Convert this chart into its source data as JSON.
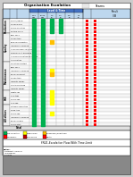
{
  "title": "Organisation Escalation",
  "logo_text": "Teams",
  "green": "#00B050",
  "yellow": "#FFFF00",
  "orange": "#FFC000",
  "red": "#FF0000",
  "dark_red": "#C00000",
  "light_blue": "#BDD7EE",
  "blue_header": "#4472C4",
  "white": "#FFFFFF",
  "light_gray": "#F2F2F2",
  "gray": "#D9D9D9",
  "black": "#000000",
  "page_bg": "#E8E8E8",
  "sections": [
    {
      "name": "Production",
      "rows": [
        {
          "label": "Client / Owner",
          "dots": [
            "G",
            "G",
            "G",
            "G",
            "",
            "",
            ""
          ],
          "right": [
            "R",
            "R"
          ]
        },
        {
          "label": "Designer size",
          "dots": [
            "G",
            "G",
            "G",
            "G",
            "",
            "",
            ""
          ],
          "right": [
            "R",
            "R"
          ]
        },
        {
          "label": "Device Condition",
          "dots": [
            "G",
            "G",
            "G",
            "G",
            "",
            "",
            ""
          ],
          "right": [
            "R",
            "R"
          ]
        },
        {
          "label": "System of Use",
          "dots": [
            "G",
            "G",
            "G",
            "G",
            "",
            "",
            ""
          ],
          "right": [
            "R",
            "R"
          ]
        }
      ]
    },
    {
      "name": "Quality",
      "rows": [
        {
          "label": "BPFI 2021",
          "dots": [
            "G",
            "G",
            "",
            "",
            "",
            "",
            ""
          ],
          "right": [
            "R",
            "R"
          ]
        },
        {
          "label": "Design type",
          "dots": [
            "G",
            "G",
            "",
            "",
            "",
            "",
            ""
          ],
          "right": [
            "R",
            "R"
          ]
        },
        {
          "label": "Raw Value Injection",
          "dots": [
            "G",
            "G",
            "O",
            "",
            "",
            "",
            ""
          ],
          "right": [
            "R",
            "R"
          ]
        },
        {
          "label": "INDUSTRIAL PROFILE",
          "dots": [
            "G",
            "G",
            "",
            "",
            "",
            "",
            ""
          ],
          "right": [
            "R",
            "R"
          ]
        },
        {
          "label": "All energy level set (2 Hm)",
          "dots": [
            "G",
            "G",
            "",
            "",
            "",
            "",
            ""
          ],
          "right": [
            "R",
            "R"
          ]
        },
        {
          "label": "Size being set according to H1",
          "dots": [
            "G",
            "G",
            "",
            "",
            "",
            "",
            ""
          ],
          "right": [
            "R",
            "R"
          ]
        },
        {
          "label": "All Device Condition will Review",
          "dots": [
            "G",
            "G",
            "",
            "",
            "",
            "",
            ""
          ],
          "right": [
            "R",
            "R"
          ]
        },
        {
          "label": "Air Condition",
          "dots": [
            "G",
            "G",
            "",
            "",
            "",
            "",
            ""
          ],
          "right": [
            "R",
            "R"
          ]
        }
      ]
    },
    {
      "name": "Maintenance",
      "rows": [
        {
          "label": "Condition For start",
          "dots": [
            "G",
            "G",
            "",
            "",
            "",
            "",
            ""
          ],
          "right": [
            "R",
            "R"
          ]
        },
        {
          "label": "BPFI 2021",
          "dots": [
            "G",
            "G",
            "",
            "",
            "",
            "",
            ""
          ],
          "right": [
            "R",
            "R"
          ]
        },
        {
          "label": "INDUSTRIAL PROFILE",
          "dots": [
            "G",
            "G",
            "Y",
            "",
            "",
            "",
            ""
          ],
          "right": [
            "R",
            "R"
          ]
        },
        {
          "label": "Energy being set",
          "dots": [
            "G",
            "G",
            "O",
            "",
            "",
            "",
            ""
          ],
          "right": [
            "R",
            "R"
          ]
        },
        {
          "label": "Design type",
          "dots": [
            "G",
            "G",
            "",
            "",
            "",
            "",
            ""
          ],
          "right": [
            "R",
            "R"
          ]
        },
        {
          "label": "Capacity energy",
          "dots": [
            "G",
            "G",
            "",
            "",
            "",
            "",
            ""
          ],
          "right": [
            "R",
            "R"
          ]
        },
        {
          "label": "CAPACITY RANGE",
          "dots": [
            "G",
            "G",
            "",
            "",
            "",
            "",
            ""
          ],
          "right": [
            "R",
            "R"
          ]
        },
        {
          "label": "Capacity energy",
          "dots": [
            "G",
            "G",
            "",
            "",
            "",
            "",
            ""
          ],
          "right": [
            "R",
            "R"
          ]
        }
      ]
    },
    {
      "name": "HSE",
      "rows": [
        {
          "label": "Safety cap",
          "dots": [
            "G",
            "G",
            "Y",
            "",
            "",
            "",
            ""
          ],
          "right": [
            "R",
            "R"
          ]
        },
        {
          "label": "Hold tops",
          "dots": [
            "G",
            "G",
            "Y",
            "",
            "",
            "",
            ""
          ],
          "right": [
            "R",
            "R"
          ]
        },
        {
          "label": "Device cap",
          "dots": [
            "G",
            "G",
            "Y",
            "",
            "",
            "",
            ""
          ],
          "right": [
            "R",
            "R"
          ]
        },
        {
          "label": "Hold cap",
          "dots": [
            "G",
            "G",
            "Y",
            "",
            "",
            "",
            ""
          ],
          "right": [
            "R",
            "R"
          ]
        }
      ]
    },
    {
      "name": "All others",
      "rows": [
        {
          "label": "Network Connection",
          "dots": [
            "G",
            "G",
            "",
            "",
            "",
            "",
            ""
          ],
          "right": [
            "R",
            "R"
          ]
        },
        {
          "label": "Drive Area",
          "dots": [
            "G",
            "G",
            "",
            "",
            "",
            "",
            ""
          ],
          "right": [
            "R",
            "R"
          ]
        },
        {
          "label": "Device cap",
          "dots": [
            "G",
            "G",
            "Y",
            "",
            "",
            "",
            ""
          ],
          "right": [
            "R",
            "R"
          ]
        },
        {
          "label": "INDUSTRIAL PROFILE",
          "dots": [
            "G",
            "G",
            "",
            "",
            "",
            "",
            ""
          ],
          "right": [
            "R",
            "R"
          ]
        },
        {
          "label": "Energy charge",
          "dots": [
            "G",
            "G",
            "",
            "",
            "",
            "",
            ""
          ],
          "right": [
            "R",
            "R"
          ]
        },
        {
          "label": "Device start",
          "dots": [
            "G",
            "G",
            "",
            "",
            "",
            "",
            ""
          ],
          "right": [
            "R",
            "R"
          ]
        }
      ]
    }
  ],
  "col_headers": [
    "Service",
    "Team",
    "Unit Checker",
    "BPGU",
    "V-Channel",
    "Unit Head",
    "Linear"
  ],
  "time_headers": [
    "0-30 min",
    "30-60 min",
    "1-2 hour",
    "2-4 hour",
    "4-8 hour",
    ">8 hour"
  ],
  "right_headers": [
    "Unit Head",
    "Linear"
  ],
  "legend": [
    {
      "color": "#00B050",
      "label": "Non-condition"
    },
    {
      "color": "#FFFF00",
      "label": "Supervision"
    },
    {
      "color": "#FFC000",
      "label": "Breakdown/Downtime"
    },
    {
      "color": "#FF0000",
      "label": "V-engineer"
    },
    {
      "color": "#C00000",
      "label": "LCOT-Block"
    },
    {
      "color": "#FF0000",
      "label": "Safety"
    }
  ]
}
